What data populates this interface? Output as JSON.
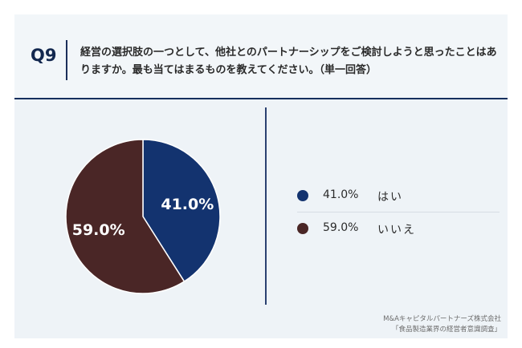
{
  "question": {
    "number": "Q9",
    "text": "経営の選択肢の一つとして、他社とのパートナーシップをご検討しようと思ったことはありますか。最も当てはまるものを教えてください。（単一回答）"
  },
  "chart_data": {
    "type": "pie",
    "categories": [
      "はい",
      "いいえ"
    ],
    "values": [
      41.0,
      59.0
    ],
    "data_labels": [
      "41.0%",
      "59.0%"
    ],
    "colors": [
      "#13336f",
      "#4a2626"
    ],
    "legend_placement": "right"
  },
  "legend": {
    "items": [
      {
        "pct": "41.0%",
        "label": "はい",
        "color": "#13336f"
      },
      {
        "pct": "59.0%",
        "label": "いいえ",
        "color": "#4a2626"
      }
    ]
  },
  "credit": {
    "company": "M&Aキャピタルパートナーズ株式会社",
    "survey": "「食品製造業界の経営者意識調査」"
  }
}
